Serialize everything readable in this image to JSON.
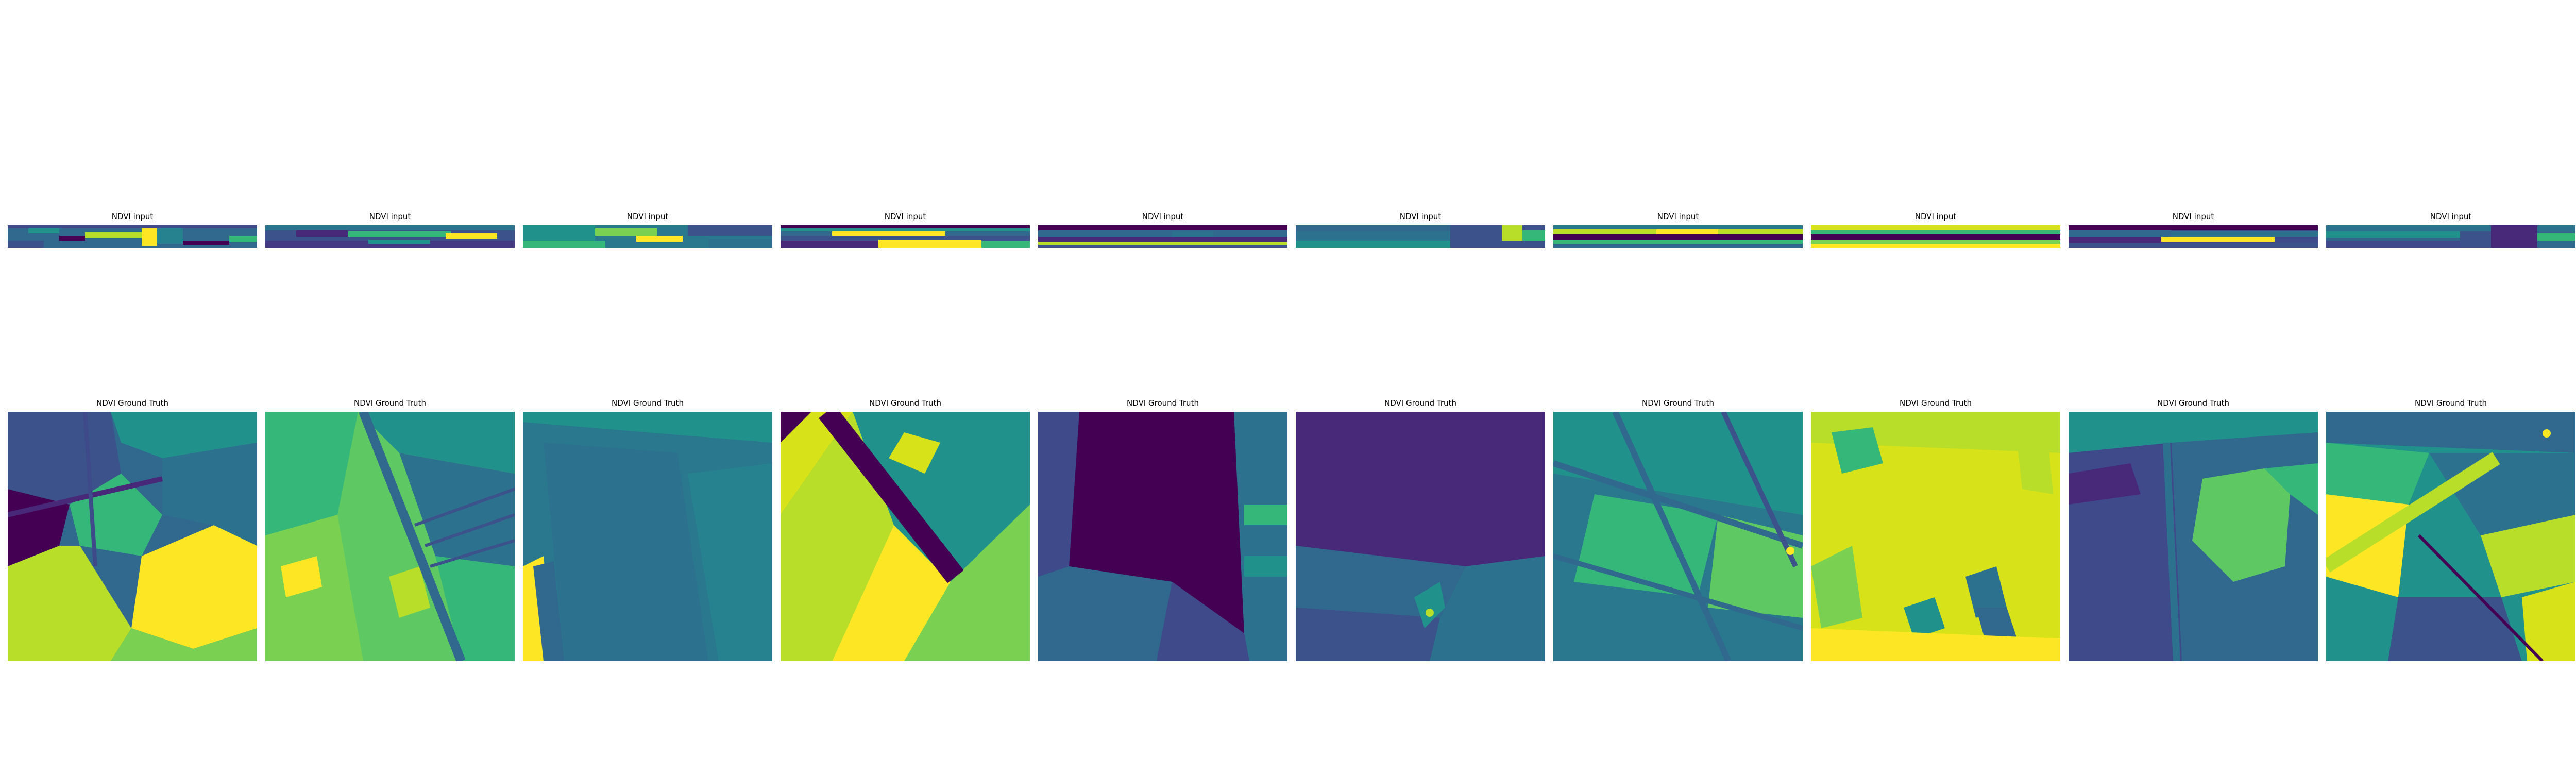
{
  "figure": {
    "colormap": "viridis",
    "rows": [
      {
        "name": "input",
        "panels": [
          {
            "title": "NDVI input",
            "pattern": "input-1"
          },
          {
            "title": "NDVI input",
            "pattern": "input-2"
          },
          {
            "title": "NDVI input",
            "pattern": "input-3"
          },
          {
            "title": "NDVI input",
            "pattern": "input-4"
          },
          {
            "title": "NDVI input",
            "pattern": "input-5"
          },
          {
            "title": "NDVI input",
            "pattern": "input-6"
          },
          {
            "title": "NDVI input",
            "pattern": "input-7"
          },
          {
            "title": "NDVI input",
            "pattern": "input-8"
          },
          {
            "title": "NDVI input",
            "pattern": "input-9"
          },
          {
            "title": "NDVI input",
            "pattern": "input-10"
          }
        ]
      },
      {
        "name": "ground-truth",
        "panels": [
          {
            "title": "NDVI Ground Truth",
            "pattern": "field-mixed"
          },
          {
            "title": "NDVI Ground Truth",
            "pattern": "field-strips-diagonal"
          },
          {
            "title": "NDVI Ground Truth",
            "pattern": "field-uniform-teal"
          },
          {
            "title": "NDVI Ground Truth",
            "pattern": "field-diagonal-bands"
          },
          {
            "title": "NDVI Ground Truth",
            "pattern": "field-dark-polygons"
          },
          {
            "title": "NDVI Ground Truth",
            "pattern": "field-dark-uniform"
          },
          {
            "title": "NDVI Ground Truth",
            "pattern": "field-grid-green"
          },
          {
            "title": "NDVI Ground Truth",
            "pattern": "field-bright-yellow"
          },
          {
            "title": "NDVI Ground Truth",
            "pattern": "field-dark-blob"
          },
          {
            "title": "NDVI Ground Truth",
            "pattern": "field-crossing-yellow"
          }
        ]
      }
    ]
  }
}
